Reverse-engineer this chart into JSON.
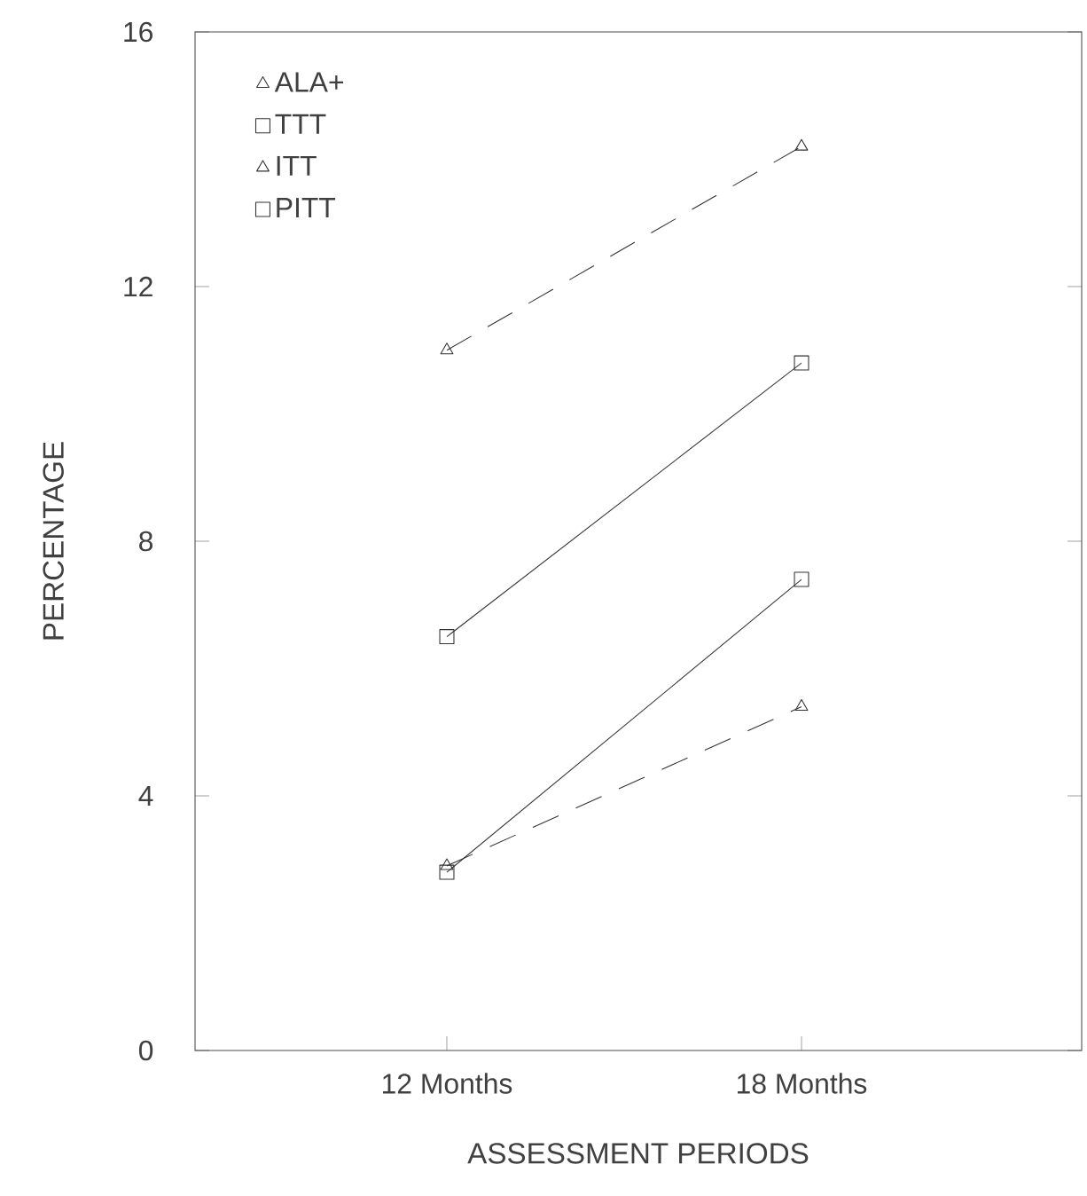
{
  "chart_data": {
    "type": "line",
    "xlabel": "ASSESSMENT PERIODS",
    "ylabel": "PERCENTAGE",
    "categories": [
      "12 Months",
      "18 Months"
    ],
    "series": [
      {
        "name": "ALA+",
        "color": "#333333",
        "values": [
          2.9,
          5.4
        ],
        "marker": "triangle",
        "line_style": "dashed"
      },
      {
        "name": "TTT",
        "color": "#333333",
        "values": [
          2.8,
          7.4
        ],
        "marker": "square",
        "line_style": "solid"
      },
      {
        "name": "ITT",
        "color": "#333333",
        "values": [
          11.0,
          14.2
        ],
        "marker": "triangle",
        "line_style": "dashed"
      },
      {
        "name": "PITT",
        "color": "#333333",
        "values": [
          6.5,
          10.8
        ],
        "marker": "square",
        "line_style": "solid"
      }
    ],
    "ylim": [
      0,
      16
    ],
    "yticks": [
      0,
      4,
      8,
      12,
      16
    ],
    "grid": false,
    "legend": "top left"
  }
}
